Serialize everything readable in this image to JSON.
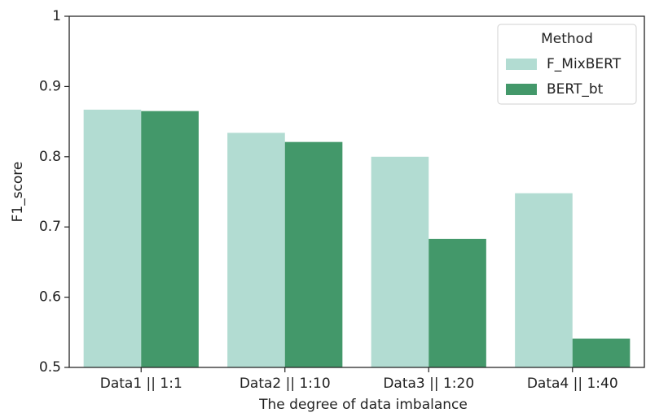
{
  "chart_data": {
    "type": "bar",
    "x_label": "The degree of data imbalance",
    "y_label": "F1_score",
    "categories": [
      "Data1 || 1:1",
      "Data2 || 1:10",
      "Data3 || 1:20",
      "Data4 || 1:40"
    ],
    "series": [
      {
        "name": "F_MixBERT",
        "color": "#b2dcd2",
        "values": [
          0.867,
          0.834,
          0.8,
          0.748
        ]
      },
      {
        "name": "BERT_bt",
        "color": "#43986a",
        "values": [
          0.865,
          0.821,
          0.683,
          0.541
        ]
      }
    ],
    "legend_title": "Method",
    "legend_position": "upper right",
    "ylim": [
      0.5,
      1.0
    ],
    "yticks": [
      0.5,
      0.6,
      0.7,
      0.8,
      0.9,
      1.0
    ],
    "grid": false
  }
}
